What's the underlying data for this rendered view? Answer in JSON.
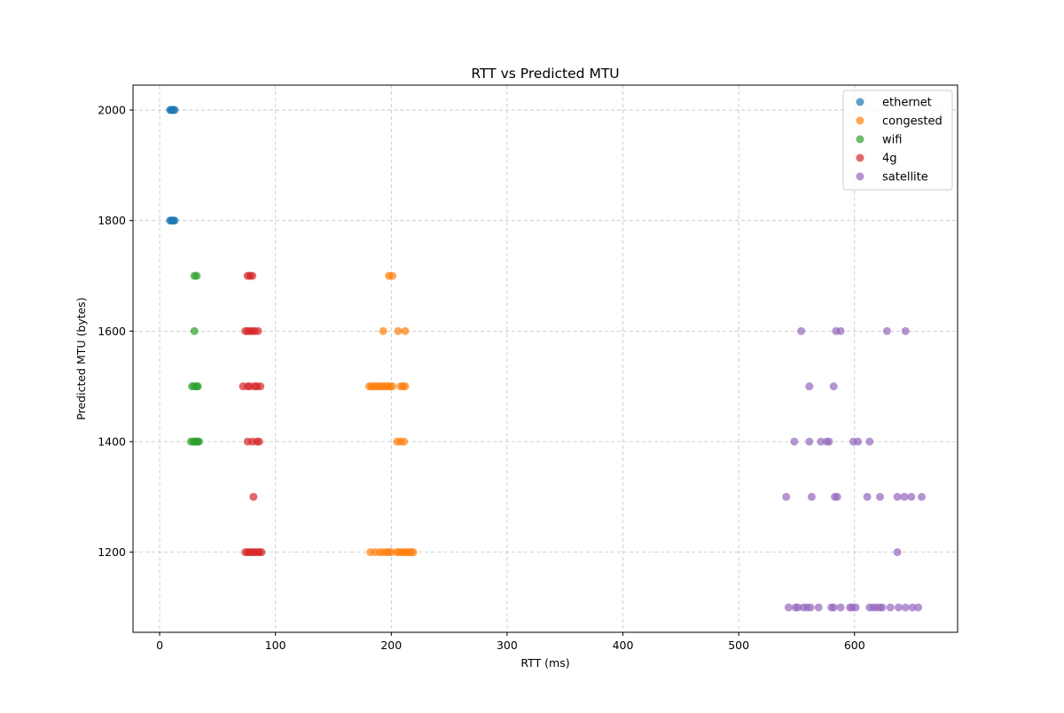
{
  "chart_data": {
    "type": "scatter",
    "title": "RTT vs Predicted MTU",
    "xlabel": "RTT (ms)",
    "ylabel": "Predicted MTU (bytes)",
    "xlim": [
      -23,
      689
    ],
    "ylim": [
      1055,
      2045
    ],
    "xticks": [
      0,
      100,
      200,
      300,
      400,
      500,
      600
    ],
    "yticks": [
      1200,
      1400,
      1600,
      1800,
      2000
    ],
    "grid": true,
    "legend_position": "top-right",
    "series": [
      {
        "name": "ethernet",
        "color": "#1f77b4",
        "points": [
          [
            9,
            2000
          ],
          [
            10,
            2000
          ],
          [
            11,
            2000
          ],
          [
            12,
            2000
          ],
          [
            13,
            2000
          ],
          [
            9,
            1800
          ],
          [
            10,
            1800
          ],
          [
            11,
            1800
          ],
          [
            12,
            1800
          ],
          [
            13,
            1800
          ]
        ]
      },
      {
        "name": "congested",
        "color": "#ff7f0e",
        "points": [
          [
            198,
            1700
          ],
          [
            201,
            1700
          ],
          [
            193,
            1600
          ],
          [
            206,
            1600
          ],
          [
            212,
            1600
          ],
          [
            181,
            1500
          ],
          [
            183,
            1500
          ],
          [
            185,
            1500
          ],
          [
            187,
            1500
          ],
          [
            189,
            1500
          ],
          [
            191,
            1500
          ],
          [
            193,
            1500
          ],
          [
            195,
            1500
          ],
          [
            197,
            1500
          ],
          [
            199,
            1500
          ],
          [
            201,
            1500
          ],
          [
            208,
            1500
          ],
          [
            210,
            1500
          ],
          [
            212,
            1500
          ],
          [
            205,
            1400
          ],
          [
            208,
            1400
          ],
          [
            211,
            1400
          ],
          [
            182,
            1200
          ],
          [
            186,
            1200
          ],
          [
            190,
            1200
          ],
          [
            193,
            1200
          ],
          [
            196,
            1200
          ],
          [
            198,
            1200
          ],
          [
            200,
            1200
          ],
          [
            205,
            1200
          ],
          [
            207,
            1200
          ],
          [
            209,
            1200
          ],
          [
            211,
            1200
          ],
          [
            213,
            1200
          ],
          [
            215,
            1200
          ],
          [
            217,
            1200
          ],
          [
            219,
            1200
          ]
        ]
      },
      {
        "name": "wifi",
        "color": "#2ca02c",
        "points": [
          [
            30,
            1700
          ],
          [
            32,
            1700
          ],
          [
            30,
            1600
          ],
          [
            28,
            1500
          ],
          [
            30,
            1500
          ],
          [
            32,
            1500
          ],
          [
            33,
            1500
          ],
          [
            27,
            1400
          ],
          [
            29,
            1400
          ],
          [
            30,
            1400
          ],
          [
            31,
            1400
          ],
          [
            32,
            1400
          ],
          [
            33,
            1400
          ],
          [
            34,
            1400
          ]
        ]
      },
      {
        "name": "4g",
        "color": "#d62728",
        "points": [
          [
            76,
            1700
          ],
          [
            78,
            1700
          ],
          [
            80,
            1700
          ],
          [
            74,
            1600
          ],
          [
            76,
            1600
          ],
          [
            78,
            1600
          ],
          [
            80,
            1600
          ],
          [
            82,
            1600
          ],
          [
            85,
            1600
          ],
          [
            72,
            1500
          ],
          [
            76,
            1500
          ],
          [
            78,
            1500
          ],
          [
            82,
            1500
          ],
          [
            84,
            1500
          ],
          [
            87,
            1500
          ],
          [
            76,
            1400
          ],
          [
            80,
            1400
          ],
          [
            84,
            1400
          ],
          [
            86,
            1400
          ],
          [
            81,
            1300
          ],
          [
            74,
            1200
          ],
          [
            76,
            1200
          ],
          [
            78,
            1200
          ],
          [
            80,
            1200
          ],
          [
            82,
            1200
          ],
          [
            84,
            1200
          ],
          [
            86,
            1200
          ],
          [
            88,
            1200
          ]
        ]
      },
      {
        "name": "satellite",
        "color": "#9467bd",
        "points": [
          [
            554,
            1600
          ],
          [
            584,
            1600
          ],
          [
            588,
            1600
          ],
          [
            628,
            1600
          ],
          [
            644,
            1600
          ],
          [
            561,
            1500
          ],
          [
            582,
            1500
          ],
          [
            548,
            1400
          ],
          [
            561,
            1400
          ],
          [
            571,
            1400
          ],
          [
            576,
            1400
          ],
          [
            578,
            1400
          ],
          [
            599,
            1400
          ],
          [
            603,
            1400
          ],
          [
            613,
            1400
          ],
          [
            541,
            1300
          ],
          [
            563,
            1300
          ],
          [
            583,
            1300
          ],
          [
            585,
            1300
          ],
          [
            611,
            1300
          ],
          [
            622,
            1300
          ],
          [
            637,
            1300
          ],
          [
            643,
            1300
          ],
          [
            649,
            1300
          ],
          [
            658,
            1300
          ],
          [
            637,
            1200
          ],
          [
            543,
            1100
          ],
          [
            549,
            1100
          ],
          [
            551,
            1100
          ],
          [
            556,
            1100
          ],
          [
            559,
            1100
          ],
          [
            562,
            1100
          ],
          [
            569,
            1100
          ],
          [
            580,
            1100
          ],
          [
            582,
            1100
          ],
          [
            588,
            1100
          ],
          [
            596,
            1100
          ],
          [
            598,
            1100
          ],
          [
            601,
            1100
          ],
          [
            613,
            1100
          ],
          [
            616,
            1100
          ],
          [
            619,
            1100
          ],
          [
            622,
            1100
          ],
          [
            624,
            1100
          ],
          [
            631,
            1100
          ],
          [
            638,
            1100
          ],
          [
            644,
            1100
          ],
          [
            650,
            1100
          ],
          [
            655,
            1100
          ]
        ]
      }
    ]
  }
}
